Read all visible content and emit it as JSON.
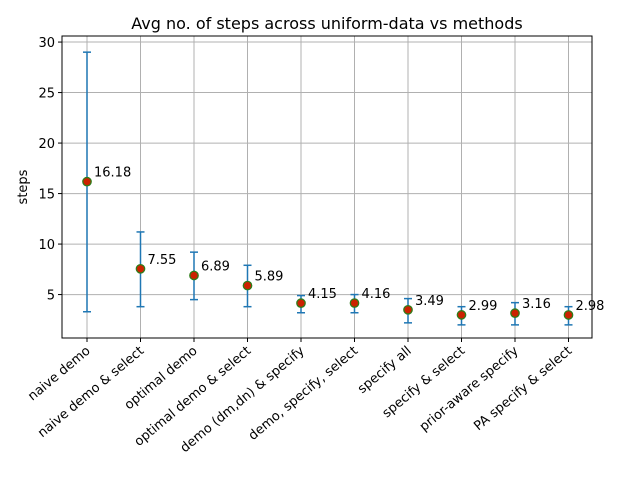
{
  "chart_data": {
    "type": "scatter",
    "title": "Avg no. of steps across uniform-data vs methods",
    "xlabel": "",
    "ylabel": "steps",
    "categories": [
      "naive demo",
      "naive demo & select",
      "optimal demo",
      "optimal demo & select",
      "demo (dm,dn) & specify",
      "demo, specify, select",
      "specify all",
      "specify & select",
      "prior-aware specify",
      "PA specify & select"
    ],
    "values": [
      16.18,
      7.55,
      6.89,
      5.89,
      4.15,
      4.16,
      3.49,
      2.99,
      3.16,
      2.98
    ],
    "labels": [
      "16.18",
      "7.55",
      "6.89",
      "5.89",
      "4.15",
      "4.16",
      "3.49",
      "2.99",
      "3.16",
      "2.98"
    ],
    "err_low": [
      3.3,
      3.8,
      4.5,
      3.8,
      3.2,
      3.2,
      2.2,
      2.0,
      2.0,
      2.0
    ],
    "err_high": [
      29.0,
      11.2,
      9.2,
      7.9,
      4.9,
      5.0,
      4.6,
      3.8,
      4.2,
      3.8
    ],
    "ylim": [
      0.7,
      30.6
    ],
    "yticks": [
      5,
      10,
      15,
      20,
      25,
      30
    ],
    "grid": true,
    "colors": {
      "marker_fill": "#cc2200",
      "marker_edge": "#2e7d1a",
      "errorbar": "#1f77b4",
      "grid": "#b0b0b0"
    }
  }
}
